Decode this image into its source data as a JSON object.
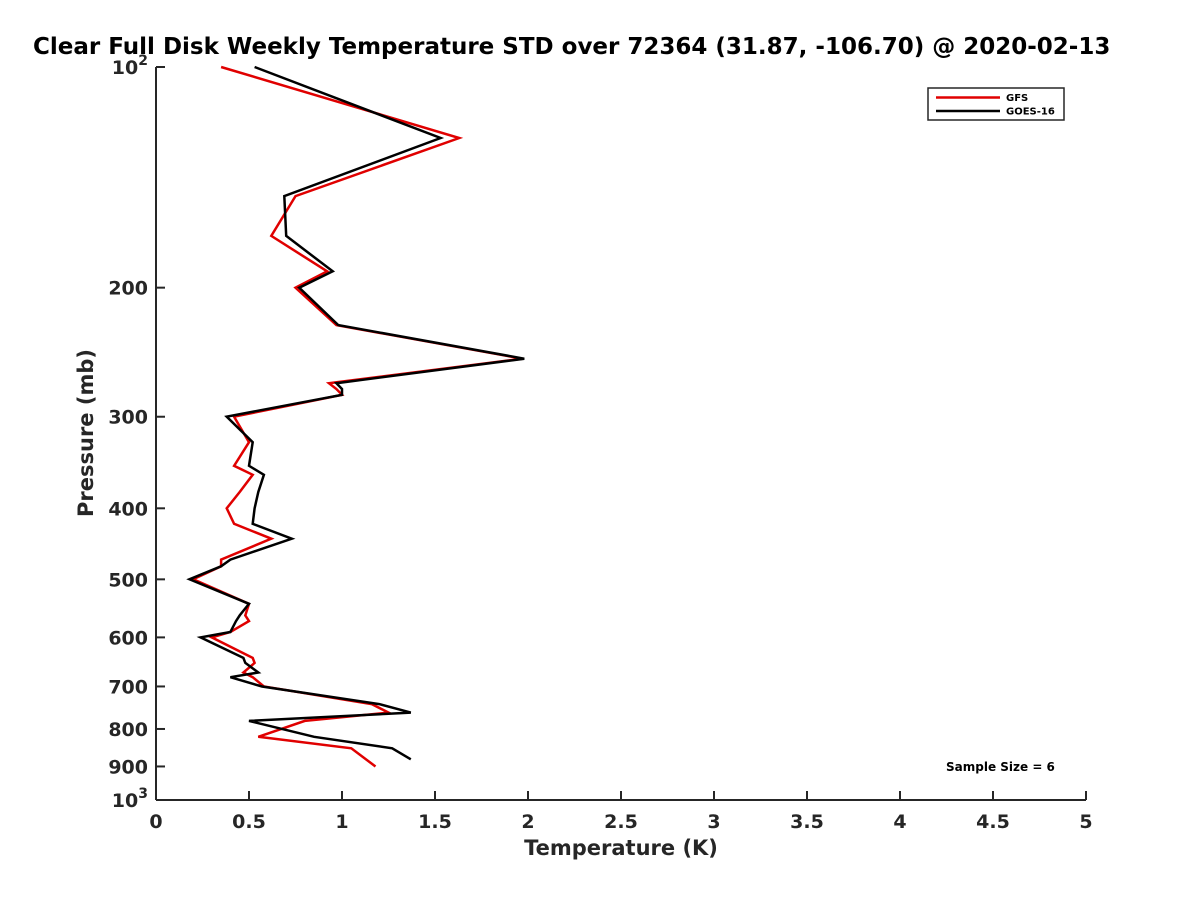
{
  "chart_data": {
    "type": "line",
    "title": "Clear Full Disk Weekly Temperature STD over 72364 (31.87, -106.70) @ 2020-02-13",
    "xlabel": "Temperature (K)",
    "ylabel": "Pressure (mb)",
    "xlim": [
      0,
      5
    ],
    "ylim": [
      100,
      1000
    ],
    "y_scale": "log",
    "y_reversed": true,
    "grid": false,
    "legend_position": "top-right",
    "x_ticks": [
      0,
      0.5,
      1,
      1.5,
      2,
      2.5,
      3,
      3.5,
      4,
      4.5,
      5
    ],
    "x_tick_labels": [
      "0",
      "0.5",
      "1",
      "1.5",
      "2",
      "2.5",
      "3",
      "3.5",
      "4",
      "4.5",
      "5"
    ],
    "y_ticks": [
      100,
      200,
      300,
      400,
      500,
      600,
      700,
      800,
      900,
      1000
    ],
    "y_tick_labels": [
      {
        "base": "10",
        "exp": "2"
      },
      {
        "base": "200",
        "exp": ""
      },
      {
        "base": "300",
        "exp": ""
      },
      {
        "base": "400",
        "exp": ""
      },
      {
        "base": "500",
        "exp": ""
      },
      {
        "base": "600",
        "exp": ""
      },
      {
        "base": "700",
        "exp": ""
      },
      {
        "base": "800",
        "exp": ""
      },
      {
        "base": "900",
        "exp": ""
      },
      {
        "base": "10",
        "exp": "3"
      }
    ],
    "series": [
      {
        "name": "GFS",
        "color": "#e00000",
        "points": [
          [
            0.35,
            100
          ],
          [
            1.63,
            125
          ],
          [
            0.75,
            150
          ],
          [
            0.62,
            170
          ],
          [
            0.92,
            190
          ],
          [
            0.75,
            200
          ],
          [
            0.97,
            225
          ],
          [
            1.97,
            250
          ],
          [
            0.93,
            270
          ],
          [
            0.97,
            275
          ],
          [
            1.0,
            280
          ],
          [
            0.42,
            300
          ],
          [
            0.5,
            325
          ],
          [
            0.42,
            350
          ],
          [
            0.52,
            360
          ],
          [
            0.45,
            380
          ],
          [
            0.38,
            400
          ],
          [
            0.42,
            420
          ],
          [
            0.62,
            440
          ],
          [
            0.35,
            470
          ],
          [
            0.35,
            480
          ],
          [
            0.2,
            500
          ],
          [
            0.5,
            540
          ],
          [
            0.48,
            560
          ],
          [
            0.5,
            570
          ],
          [
            0.4,
            590
          ],
          [
            0.3,
            600
          ],
          [
            0.52,
            640
          ],
          [
            0.53,
            650
          ],
          [
            0.47,
            670
          ],
          [
            0.52,
            680
          ],
          [
            0.58,
            700
          ],
          [
            1.16,
            740
          ],
          [
            1.25,
            760
          ],
          [
            0.8,
            780
          ],
          [
            0.55,
            820
          ],
          [
            1.05,
            850
          ],
          [
            1.18,
            900
          ]
        ]
      },
      {
        "name": "GOES-16",
        "color": "#000000",
        "points": [
          [
            0.53,
            100
          ],
          [
            1.53,
            125
          ],
          [
            0.69,
            150
          ],
          [
            0.7,
            170
          ],
          [
            0.95,
            190
          ],
          [
            0.77,
            200
          ],
          [
            0.98,
            225
          ],
          [
            1.98,
            250
          ],
          [
            0.97,
            270
          ],
          [
            1.0,
            275
          ],
          [
            1.0,
            280
          ],
          [
            0.38,
            300
          ],
          [
            0.52,
            325
          ],
          [
            0.5,
            350
          ],
          [
            0.58,
            360
          ],
          [
            0.55,
            380
          ],
          [
            0.53,
            400
          ],
          [
            0.52,
            420
          ],
          [
            0.73,
            440
          ],
          [
            0.4,
            470
          ],
          [
            0.35,
            480
          ],
          [
            0.18,
            500
          ],
          [
            0.5,
            540
          ],
          [
            0.45,
            560
          ],
          [
            0.43,
            570
          ],
          [
            0.4,
            590
          ],
          [
            0.24,
            600
          ],
          [
            0.47,
            640
          ],
          [
            0.48,
            650
          ],
          [
            0.55,
            670
          ],
          [
            0.4,
            680
          ],
          [
            0.57,
            700
          ],
          [
            1.2,
            740
          ],
          [
            1.37,
            760
          ],
          [
            0.5,
            780
          ],
          [
            0.85,
            820
          ],
          [
            1.27,
            850
          ],
          [
            1.37,
            880
          ]
        ]
      }
    ],
    "annotation": "Sample Size = 6"
  }
}
